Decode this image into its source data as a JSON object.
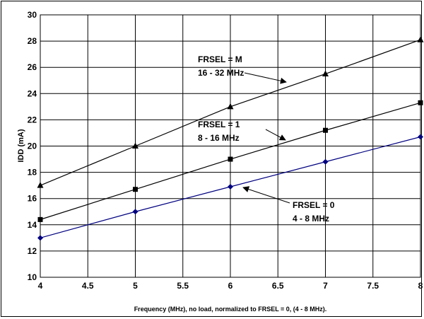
{
  "chart_data": {
    "type": "line",
    "xlabel": "Frequency (MHz), no load, normalized to FRSEL = 0, (4 - 8 MHz).",
    "ylabel": "IDD (mA)",
    "xlim": [
      4,
      8
    ],
    "ylim": [
      10,
      30
    ],
    "x_ticks": [
      "4",
      "4.5",
      "5",
      "5.5",
      "6",
      "6.5",
      "7",
      "7.5",
      "8"
    ],
    "y_ticks": [
      "10",
      "12",
      "14",
      "16",
      "18",
      "20",
      "22",
      "24",
      "26",
      "28",
      "30"
    ],
    "grid": true,
    "x": [
      4,
      5,
      6,
      7,
      8
    ],
    "series": [
      {
        "name": "FRSEL = M",
        "sub": "16 - 32 MHz",
        "marker": "triangle",
        "color": "#000000",
        "values": [
          17.0,
          20.0,
          23.0,
          25.5,
          28.1
        ]
      },
      {
        "name": "FRSEL = 1",
        "sub": "8 - 16 MHz",
        "marker": "square",
        "color": "#000000",
        "values": [
          14.4,
          16.7,
          19.0,
          21.2,
          23.3
        ]
      },
      {
        "name": "FRSEL = 0",
        "sub": "4 - 8 MHz",
        "marker": "diamond",
        "color": "#000080",
        "values": [
          13.0,
          15.0,
          16.9,
          18.8,
          20.7
        ]
      }
    ]
  }
}
